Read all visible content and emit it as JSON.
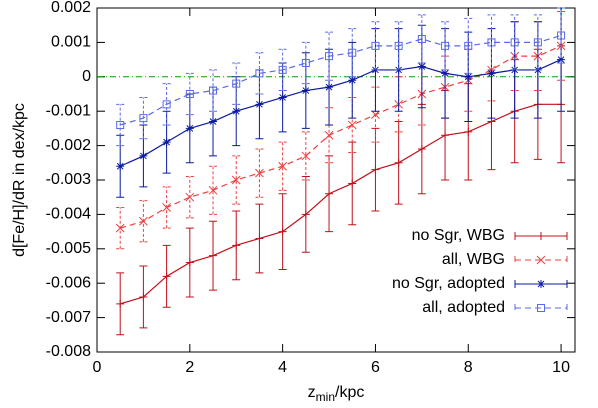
{
  "chart_data": {
    "type": "errorbar-line",
    "x_label": {
      "main": "z",
      "sub": "min",
      "rest": "/kpc"
    },
    "y_label": "d[Fe/H]/dR in dex/kpc",
    "xlim": [
      0,
      10.3
    ],
    "ylim": [
      -0.008,
      0.002
    ],
    "xticks": [
      0,
      2,
      4,
      6,
      8,
      10
    ],
    "yticks": [
      0.002,
      0.001,
      0,
      -0.001,
      -0.002,
      -0.003,
      -0.004,
      -0.005,
      -0.006,
      -0.007,
      -0.008
    ],
    "reference_line": {
      "value": 0,
      "color": "#00a000"
    },
    "legend": "lower right",
    "x": [
      0.5,
      1,
      1.5,
      2,
      2.5,
      3,
      3.5,
      4,
      4.5,
      5,
      5.5,
      6,
      6.5,
      7,
      7.5,
      8,
      8.5,
      9,
      9.5,
      10
    ],
    "series": [
      {
        "name": "no Sgr, WBG",
        "color": "#c0101a",
        "dash": "solid",
        "marker": "plus",
        "values": [
          -0.0066,
          -0.0064,
          -0.0058,
          -0.0054,
          -0.0052,
          -0.0049,
          -0.0047,
          -0.0045,
          -0.004,
          -0.0034,
          -0.0031,
          -0.0027,
          -0.0025,
          -0.0021,
          -0.0017,
          -0.0016,
          -0.0013,
          -0.001,
          -0.0008,
          -0.0008
        ],
        "errors": [
          0.0009,
          0.0009,
          0.0009,
          0.001,
          0.001,
          0.001,
          0.001,
          0.0011,
          0.0011,
          0.0011,
          0.0012,
          0.0012,
          0.0012,
          0.0013,
          0.0013,
          0.0014,
          0.0014,
          0.0015,
          0.0016,
          0.0017
        ]
      },
      {
        "name": "all, WBG",
        "color": "#ee4040",
        "dash": "dashed",
        "marker": "cross",
        "values": [
          -0.0044,
          -0.0042,
          -0.0038,
          -0.0035,
          -0.0033,
          -0.003,
          -0.0028,
          -0.0026,
          -0.0023,
          -0.0017,
          -0.0014,
          -0.0011,
          -0.0008,
          -0.0005,
          -0.0003,
          -0.0001,
          0.0002,
          0.0006,
          0.0006,
          0.0009
        ],
        "errors": [
          0.0006,
          0.0006,
          0.0006,
          0.0006,
          0.0007,
          0.0007,
          0.0007,
          0.0007,
          0.0007,
          0.0008,
          0.0008,
          0.0008,
          0.0008,
          0.0009,
          0.0009,
          0.0009,
          0.0009,
          0.001,
          0.001,
          0.001
        ]
      },
      {
        "name": "no Sgr, adopted",
        "color": "#0a1aa0",
        "dash": "solid",
        "marker": "star",
        "values": [
          -0.0026,
          -0.0023,
          -0.0019,
          -0.0015,
          -0.0013,
          -0.001,
          -0.0008,
          -0.0006,
          -0.0004,
          -0.0003,
          -0.0001,
          0.0002,
          0.0002,
          0.0003,
          0.0001,
          0,
          0.0001,
          0.0002,
          0.0002,
          0.0005
        ],
        "errors": [
          0.0009,
          0.0009,
          0.0009,
          0.001,
          0.001,
          0.001,
          0.001,
          0.001,
          0.0011,
          0.0011,
          0.0011,
          0.0012,
          0.0012,
          0.0012,
          0.0013,
          0.0013,
          0.0013,
          0.0014,
          0.0014,
          0.0015
        ]
      },
      {
        "name": "all, adopted",
        "color": "#5a6ae8",
        "dash": "dashed",
        "marker": "square",
        "values": [
          -0.0014,
          -0.0012,
          -0.0008,
          -0.0005,
          -0.0004,
          -0.0002,
          0.0001,
          0.0002,
          0.0004,
          0.0006,
          0.0007,
          0.0009,
          0.0009,
          0.0011,
          0.0009,
          0.0009,
          0.001,
          0.001,
          0.001,
          0.0012
        ],
        "errors": [
          0.0006,
          0.0006,
          0.0006,
          0.0006,
          0.0006,
          0.0006,
          0.0006,
          0.0006,
          0.0006,
          0.0007,
          0.0007,
          0.0007,
          0.0007,
          0.0007,
          0.0007,
          0.0008,
          0.0008,
          0.0008,
          0.0008,
          0.0008
        ]
      }
    ]
  }
}
